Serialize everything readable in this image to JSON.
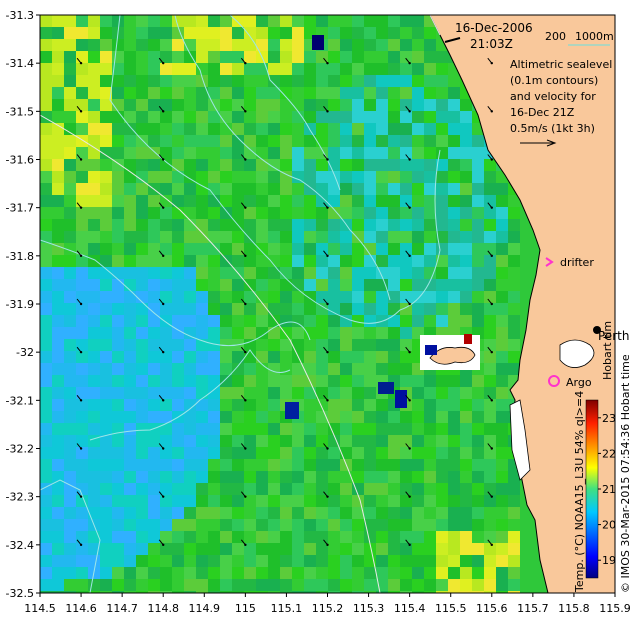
{
  "map": {
    "x_ticks": [
      "114.5",
      "114.6",
      "114.7",
      "114.8",
      "114.9",
      "115",
      "115.1",
      "115.2",
      "115.3",
      "115.4",
      "115.5",
      "115.6",
      "115.7",
      "115.8",
      "115.9"
    ],
    "y_ticks": [
      "-31.3",
      "-31.4",
      "-31.5",
      "-31.6",
      "-31.7",
      "-31.8",
      "-31.9",
      "-32",
      "-32.1",
      "-32.2",
      "-32.3",
      "-32.4",
      "-32.5"
    ],
    "lon_range": [
      114.5,
      115.9
    ],
    "lat_range": [
      -32.5,
      -31.3
    ],
    "date_line1": "16-Dec-2006",
    "date_line2": "21:03Z",
    "depth_200": "200",
    "depth_1000": "1000m",
    "desc_lines": [
      "Altimetric sealevel",
      "(0.1m contours)",
      "and velocity for",
      "16-Dec 21Z",
      "0.5m/s (1kt 3h)"
    ],
    "drifter_label": "drifter",
    "argo_label": "Argo",
    "perth_label": "Perth",
    "hobart_label": "Hobart tim",
    "land_color": "#f9c89b",
    "drifter_color": "#ff33cc",
    "argo_color": "#ff33cc",
    "contour_color": "#9fe6e6"
  },
  "colorbar": {
    "ticks": [
      "19",
      "20",
      "21",
      "22",
      "23"
    ],
    "range": [
      18.5,
      23.5
    ],
    "caption": "Temp. (°C) NOAA15_L3U 54% ql>=4",
    "credit": "© IMOS 30-Mar-2015 07:54:36 Hobart time"
  }
}
